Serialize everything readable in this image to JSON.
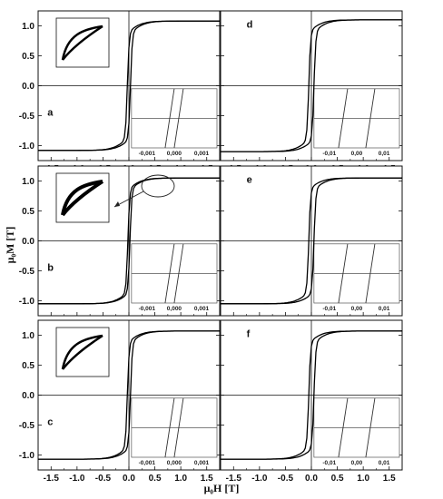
{
  "figure": {
    "ylabel": "μ₀M [T]",
    "xlabel": "μ₀H [T]"
  },
  "chart_data": {
    "type": "line",
    "x_ticks": [
      "-1.5",
      "-1.0",
      "-0.5",
      "0.0",
      "0.5",
      "1.0",
      "1.5"
    ],
    "y_ticks": [
      "1.0",
      "0.5",
      "0.0",
      "-0.5",
      "-1.0"
    ],
    "xlim": [
      -1.75,
      1.75
    ],
    "ylim": [
      -1.25,
      1.25
    ],
    "panels": [
      {
        "label": "a",
        "ms": 1.08,
        "hc": 0.03,
        "inset_ticks": [
          "-0,001",
          "0,000",
          "0,001"
        ],
        "side_inset": true
      },
      {
        "label": "d",
        "ms": 1.1,
        "hc": 0.05,
        "inset_ticks": [
          "-0,01",
          "0,00",
          "0,01"
        ],
        "side_inset": false
      },
      {
        "label": "b",
        "ms": 1.05,
        "hc": 0.02,
        "inset_ticks": [
          "-0,001",
          "0,000",
          "0,001"
        ],
        "side_inset": true
      },
      {
        "label": "e",
        "ms": 1.05,
        "hc": 0.05,
        "inset_ticks": [
          "-0,01",
          "0,00",
          "0,01"
        ],
        "side_inset": false
      },
      {
        "label": "c",
        "ms": 1.07,
        "hc": 0.03,
        "inset_ticks": [
          "-0,001",
          "0,000",
          "0,001"
        ],
        "side_inset": true
      },
      {
        "label": "f",
        "ms": 1.07,
        "hc": 0.05,
        "inset_ticks": [
          "-0,01",
          "0,00",
          "0,01"
        ],
        "side_inset": false
      }
    ]
  }
}
